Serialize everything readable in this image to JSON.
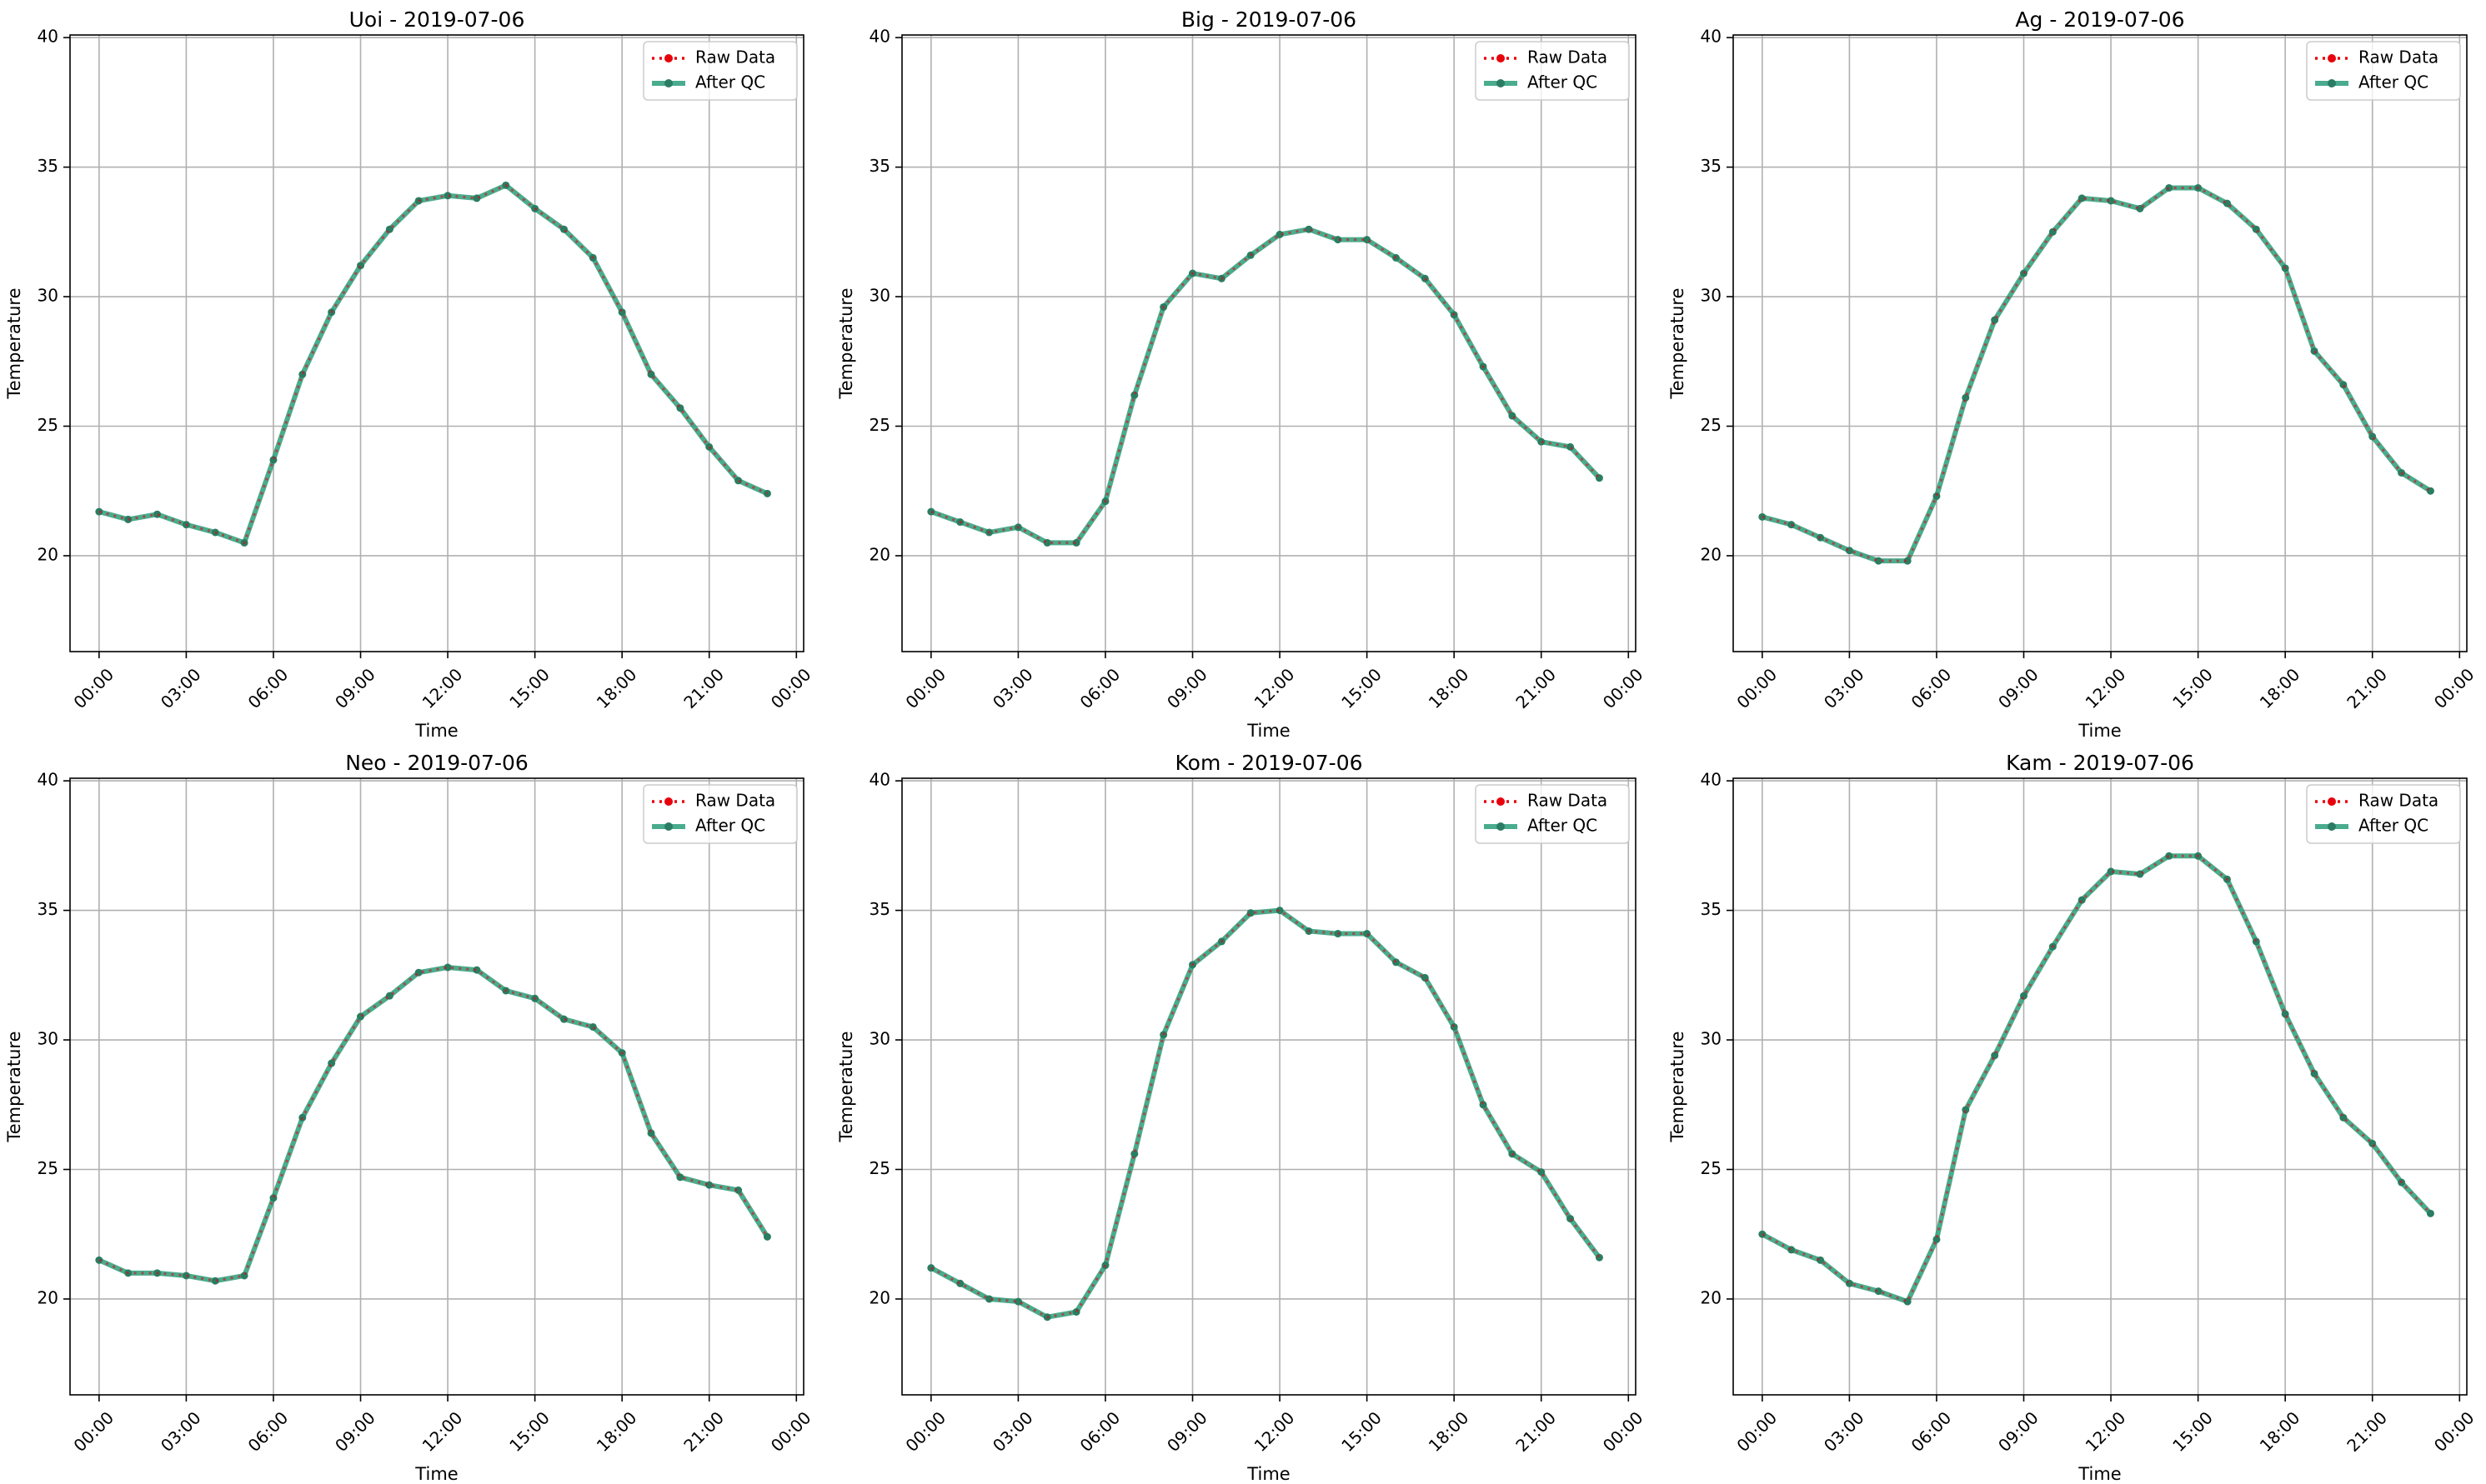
{
  "chart_data": [
    {
      "type": "line",
      "title": "Uoi - 2019-07-06",
      "xlabel": "Time",
      "ylabel": "Temperature",
      "ylim": [
        16.3,
        40.1
      ],
      "yticks": [
        20,
        25,
        30,
        35,
        40
      ],
      "xticks": [
        "00:00",
        "03:00",
        "06:00",
        "09:00",
        "12:00",
        "15:00",
        "18:00",
        "21:00",
        "00:00"
      ],
      "grid": true,
      "legend_position": "top-right",
      "x_hours": [
        0,
        1,
        2,
        3,
        4,
        5,
        6,
        7,
        8,
        9,
        10,
        11,
        12,
        13,
        14,
        15,
        16,
        17,
        18,
        19,
        20,
        21,
        22,
        23
      ],
      "series": [
        {
          "name": "Raw Data",
          "color": "#e8000b",
          "values": [
            21.7,
            21.4,
            21.6,
            21.2,
            20.9,
            20.5,
            23.7,
            27.0,
            29.4,
            31.2,
            32.6,
            33.7,
            33.9,
            33.8,
            34.3,
            33.4,
            32.6,
            31.5,
            29.4,
            27.0,
            25.7,
            24.2,
            22.9,
            22.4
          ]
        },
        {
          "name": "After QC",
          "color": "#2a9d7a",
          "values": [
            21.7,
            21.4,
            21.6,
            21.2,
            20.9,
            20.5,
            23.7,
            27.0,
            29.4,
            31.2,
            32.6,
            33.7,
            33.9,
            33.8,
            34.3,
            33.4,
            32.6,
            31.5,
            29.4,
            27.0,
            25.7,
            24.2,
            22.9,
            22.4
          ]
        }
      ]
    },
    {
      "type": "line",
      "title": "Big - 2019-07-06",
      "xlabel": "Time",
      "ylabel": "Temperature",
      "ylim": [
        16.3,
        40.1
      ],
      "yticks": [
        20,
        25,
        30,
        35,
        40
      ],
      "xticks": [
        "00:00",
        "03:00",
        "06:00",
        "09:00",
        "12:00",
        "15:00",
        "18:00",
        "21:00",
        "00:00"
      ],
      "grid": true,
      "legend_position": "top-right",
      "x_hours": [
        0,
        1,
        2,
        3,
        4,
        5,
        6,
        7,
        8,
        9,
        10,
        11,
        12,
        13,
        14,
        15,
        16,
        17,
        18,
        19,
        20,
        21,
        22,
        23
      ],
      "series": [
        {
          "name": "Raw Data",
          "color": "#e8000b",
          "values": [
            21.7,
            21.3,
            20.9,
            21.1,
            20.5,
            20.5,
            22.1,
            26.2,
            29.6,
            30.9,
            30.7,
            31.6,
            32.4,
            32.6,
            32.2,
            32.2,
            31.5,
            30.7,
            29.3,
            27.3,
            25.4,
            24.4,
            24.2,
            23.0
          ]
        },
        {
          "name": "After QC",
          "color": "#2a9d7a",
          "values": [
            21.7,
            21.3,
            20.9,
            21.1,
            20.5,
            20.5,
            22.1,
            26.2,
            29.6,
            30.9,
            30.7,
            31.6,
            32.4,
            32.6,
            32.2,
            32.2,
            31.5,
            30.7,
            29.3,
            27.3,
            25.4,
            24.4,
            24.2,
            23.0
          ]
        }
      ]
    },
    {
      "type": "line",
      "title": "Ag - 2019-07-06",
      "xlabel": "Time",
      "ylabel": "Temperature",
      "ylim": [
        16.3,
        40.1
      ],
      "yticks": [
        20,
        25,
        30,
        35,
        40
      ],
      "xticks": [
        "00:00",
        "03:00",
        "06:00",
        "09:00",
        "12:00",
        "15:00",
        "18:00",
        "21:00",
        "00:00"
      ],
      "grid": true,
      "legend_position": "top-right",
      "x_hours": [
        0,
        1,
        2,
        3,
        4,
        5,
        6,
        7,
        8,
        9,
        10,
        11,
        12,
        13,
        14,
        15,
        16,
        17,
        18,
        19,
        20,
        21,
        22,
        23
      ],
      "series": [
        {
          "name": "Raw Data",
          "color": "#e8000b",
          "values": [
            21.5,
            21.2,
            20.7,
            20.2,
            19.8,
            19.8,
            22.3,
            26.1,
            29.1,
            30.9,
            32.5,
            33.8,
            33.7,
            33.4,
            34.2,
            34.2,
            33.6,
            32.6,
            31.1,
            27.9,
            26.6,
            24.6,
            23.2,
            22.5
          ]
        },
        {
          "name": "After QC",
          "color": "#2a9d7a",
          "values": [
            21.5,
            21.2,
            20.7,
            20.2,
            19.8,
            19.8,
            22.3,
            26.1,
            29.1,
            30.9,
            32.5,
            33.8,
            33.7,
            33.4,
            34.2,
            34.2,
            33.6,
            32.6,
            31.1,
            27.9,
            26.6,
            24.6,
            23.2,
            22.5
          ]
        }
      ]
    },
    {
      "type": "line",
      "title": "Neo - 2019-07-06",
      "xlabel": "Time",
      "ylabel": "Temperature",
      "ylim": [
        16.3,
        40.1
      ],
      "yticks": [
        20,
        25,
        30,
        35,
        40
      ],
      "xticks": [
        "00:00",
        "03:00",
        "06:00",
        "09:00",
        "12:00",
        "15:00",
        "18:00",
        "21:00",
        "00:00"
      ],
      "grid": true,
      "legend_position": "top-right",
      "x_hours": [
        0,
        1,
        2,
        3,
        4,
        5,
        6,
        7,
        8,
        9,
        10,
        11,
        12,
        13,
        14,
        15,
        16,
        17,
        18,
        19,
        20,
        21,
        22,
        23
      ],
      "series": [
        {
          "name": "Raw Data",
          "color": "#e8000b",
          "values": [
            21.5,
            21.0,
            21.0,
            20.9,
            20.7,
            20.9,
            23.9,
            27.0,
            29.1,
            30.9,
            31.7,
            32.6,
            32.8,
            32.7,
            31.9,
            31.6,
            30.8,
            30.5,
            29.5,
            26.4,
            24.7,
            24.4,
            24.2,
            22.4
          ]
        },
        {
          "name": "After QC",
          "color": "#2a9d7a",
          "values": [
            21.5,
            21.0,
            21.0,
            20.9,
            20.7,
            20.9,
            23.9,
            27.0,
            29.1,
            30.9,
            31.7,
            32.6,
            32.8,
            32.7,
            31.9,
            31.6,
            30.8,
            30.5,
            29.5,
            26.4,
            24.7,
            24.4,
            24.2,
            22.4
          ]
        }
      ]
    },
    {
      "type": "line",
      "title": "Kom - 2019-07-06",
      "xlabel": "Time",
      "ylabel": "Temperature",
      "ylim": [
        16.3,
        40.1
      ],
      "yticks": [
        20,
        25,
        30,
        35,
        40
      ],
      "xticks": [
        "00:00",
        "03:00",
        "06:00",
        "09:00",
        "12:00",
        "15:00",
        "18:00",
        "21:00",
        "00:00"
      ],
      "grid": true,
      "legend_position": "top-right",
      "x_hours": [
        0,
        1,
        2,
        3,
        4,
        5,
        6,
        7,
        8,
        9,
        10,
        11,
        12,
        13,
        14,
        15,
        16,
        17,
        18,
        19,
        20,
        21,
        22,
        23
      ],
      "series": [
        {
          "name": "Raw Data",
          "color": "#e8000b",
          "values": [
            21.2,
            20.6,
            20.0,
            19.9,
            19.3,
            19.5,
            21.3,
            25.6,
            30.2,
            32.9,
            33.8,
            34.9,
            35.0,
            34.2,
            34.1,
            34.1,
            33.0,
            32.4,
            30.5,
            27.5,
            25.6,
            24.9,
            23.1,
            21.6
          ]
        },
        {
          "name": "After QC",
          "color": "#2a9d7a",
          "values": [
            21.2,
            20.6,
            20.0,
            19.9,
            19.3,
            19.5,
            21.3,
            25.6,
            30.2,
            32.9,
            33.8,
            34.9,
            35.0,
            34.2,
            34.1,
            34.1,
            33.0,
            32.4,
            30.5,
            27.5,
            25.6,
            24.9,
            23.1,
            21.6
          ]
        }
      ]
    },
    {
      "type": "line",
      "title": "Kam - 2019-07-06",
      "xlabel": "Time",
      "ylabel": "Temperature",
      "ylim": [
        16.3,
        40.1
      ],
      "yticks": [
        20,
        25,
        30,
        35,
        40
      ],
      "xticks": [
        "00:00",
        "03:00",
        "06:00",
        "09:00",
        "12:00",
        "15:00",
        "18:00",
        "21:00",
        "00:00"
      ],
      "grid": true,
      "legend_position": "top-right",
      "x_hours": [
        0,
        1,
        2,
        3,
        4,
        5,
        6,
        7,
        8,
        9,
        10,
        11,
        12,
        13,
        14,
        15,
        16,
        17,
        18,
        19,
        20,
        21,
        22,
        23
      ],
      "series": [
        {
          "name": "Raw Data",
          "color": "#e8000b",
          "values": [
            22.5,
            21.9,
            21.5,
            20.6,
            20.3,
            19.9,
            22.3,
            27.3,
            29.4,
            31.7,
            33.6,
            35.4,
            36.5,
            36.4,
            37.1,
            37.1,
            36.2,
            33.8,
            31.0,
            28.7,
            27.0,
            26.0,
            24.5,
            23.3
          ]
        },
        {
          "name": "After QC",
          "color": "#2a9d7a",
          "values": [
            22.5,
            21.9,
            21.5,
            20.6,
            20.3,
            19.9,
            22.3,
            27.3,
            29.4,
            31.7,
            33.6,
            35.4,
            36.5,
            36.4,
            37.1,
            37.1,
            36.2,
            33.8,
            31.0,
            28.7,
            27.0,
            26.0,
            24.5,
            23.3
          ]
        }
      ]
    }
  ]
}
